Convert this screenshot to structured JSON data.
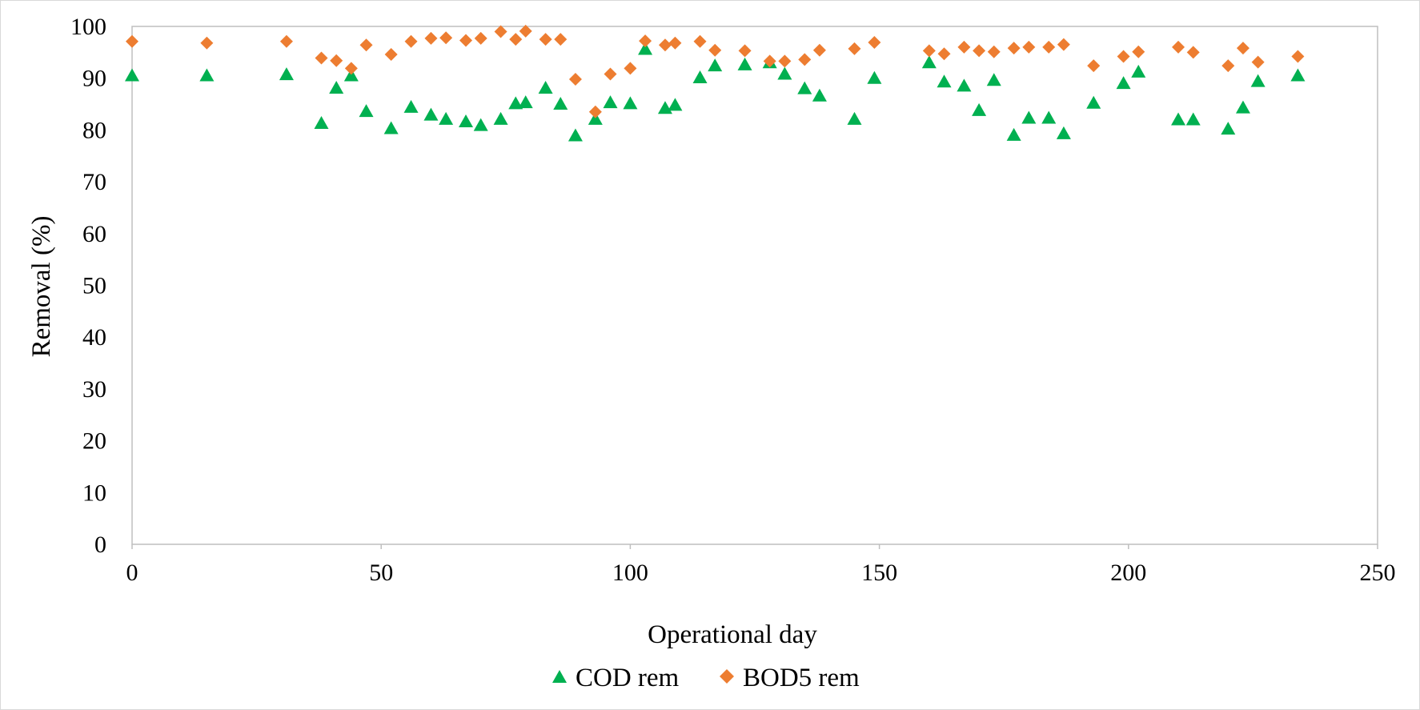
{
  "chart_data": {
    "type": "scatter",
    "xlabel": "Operational day",
    "ylabel": "Removal (%)",
    "xlim": [
      0,
      250
    ],
    "ylim": [
      0,
      100
    ],
    "x_ticks": [
      "0",
      "50",
      "100",
      "150",
      "200",
      "250"
    ],
    "y_ticks": [
      "0",
      "10",
      "20",
      "30",
      "40",
      "50",
      "60",
      "70",
      "80",
      "90",
      "100"
    ],
    "grid": false,
    "legend_position": "bottom",
    "series": [
      {
        "name": "COD rem",
        "marker": "triangle",
        "color": "#00b050",
        "points": [
          [
            0,
            90.5
          ],
          [
            15,
            90.5
          ],
          [
            31,
            90.7
          ],
          [
            38,
            81.3
          ],
          [
            41,
            88.1
          ],
          [
            44,
            90.5
          ],
          [
            47,
            83.6
          ],
          [
            52,
            80.3
          ],
          [
            56,
            84.4
          ],
          [
            60,
            82.9
          ],
          [
            63,
            82.1
          ],
          [
            67,
            81.6
          ],
          [
            70,
            80.9
          ],
          [
            74,
            82.1
          ],
          [
            77,
            85.1
          ],
          [
            79,
            85.3
          ],
          [
            83,
            88.1
          ],
          [
            86,
            85.0
          ],
          [
            89,
            78.9
          ],
          [
            93,
            82.1
          ],
          [
            96,
            85.3
          ],
          [
            100,
            85.1
          ],
          [
            103,
            95.6
          ],
          [
            107,
            84.2
          ],
          [
            109,
            84.8
          ],
          [
            114,
            90.1
          ],
          [
            117,
            92.4
          ],
          [
            123,
            92.6
          ],
          [
            128,
            93.0
          ],
          [
            131,
            90.8
          ],
          [
            135,
            88.0
          ],
          [
            138,
            86.6
          ],
          [
            145,
            82.1
          ],
          [
            149,
            90.0
          ],
          [
            160,
            93.0
          ],
          [
            163,
            89.3
          ],
          [
            167,
            88.5
          ],
          [
            170,
            83.8
          ],
          [
            173,
            89.6
          ],
          [
            177,
            79.0
          ],
          [
            180,
            82.3
          ],
          [
            184,
            82.3
          ],
          [
            187,
            79.3
          ],
          [
            193,
            85.2
          ],
          [
            199,
            89.0
          ],
          [
            202,
            91.2
          ],
          [
            210,
            82.0
          ],
          [
            213,
            82.0
          ],
          [
            220,
            80.2
          ],
          [
            223,
            84.3
          ],
          [
            226,
            89.4
          ],
          [
            234,
            90.5
          ]
        ]
      },
      {
        "name": "BOD5 rem",
        "marker": "diamond",
        "color": "#ed7d31",
        "points": [
          [
            0,
            97.1
          ],
          [
            15,
            96.8
          ],
          [
            31,
            97.1
          ],
          [
            38,
            93.9
          ],
          [
            41,
            93.4
          ],
          [
            44,
            91.9
          ],
          [
            47,
            96.4
          ],
          [
            52,
            94.6
          ],
          [
            56,
            97.1
          ],
          [
            60,
            97.7
          ],
          [
            63,
            97.8
          ],
          [
            67,
            97.3
          ],
          [
            70,
            97.7
          ],
          [
            74,
            99.0
          ],
          [
            77,
            97.5
          ],
          [
            79,
            99.1
          ],
          [
            83,
            97.5
          ],
          [
            86,
            97.5
          ],
          [
            89,
            89.8
          ],
          [
            93,
            83.5
          ],
          [
            96,
            90.8
          ],
          [
            100,
            91.9
          ],
          [
            103,
            97.2
          ],
          [
            107,
            96.4
          ],
          [
            109,
            96.8
          ],
          [
            114,
            97.1
          ],
          [
            117,
            95.4
          ],
          [
            123,
            95.3
          ],
          [
            128,
            93.3
          ],
          [
            131,
            93.3
          ],
          [
            135,
            93.6
          ],
          [
            138,
            95.4
          ],
          [
            145,
            95.7
          ],
          [
            149,
            96.9
          ],
          [
            160,
            95.3
          ],
          [
            163,
            94.7
          ],
          [
            167,
            96.0
          ],
          [
            170,
            95.3
          ],
          [
            173,
            95.1
          ],
          [
            177,
            95.8
          ],
          [
            180,
            96.0
          ],
          [
            184,
            96.0
          ],
          [
            187,
            96.5
          ],
          [
            193,
            92.4
          ],
          [
            199,
            94.2
          ],
          [
            202,
            95.1
          ],
          [
            210,
            96.0
          ],
          [
            213,
            95.0
          ],
          [
            220,
            92.4
          ],
          [
            223,
            95.8
          ],
          [
            226,
            93.1
          ],
          [
            234,
            94.2
          ]
        ]
      }
    ]
  },
  "colors": {
    "axis": "#bfbfbf",
    "frame": "#d9d9d9",
    "text": "#000000"
  }
}
